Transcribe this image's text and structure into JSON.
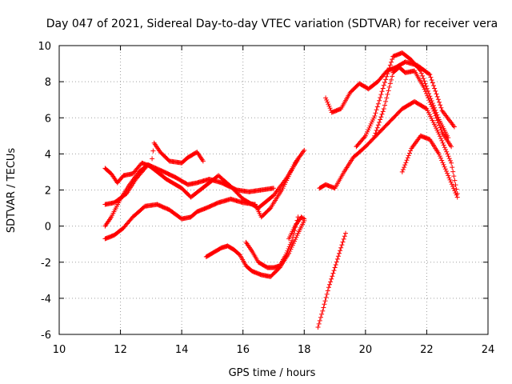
{
  "chart_data": {
    "type": "scatter",
    "title": "Day 047 of 2021, Sidereal Day-to-day VTEC variation (SDTVAR) for receiver vera",
    "xlabel": "GPS time / hours",
    "ylabel": "SDTVAR / TECUs",
    "xlim": [
      10,
      24
    ],
    "ylim": [
      -6,
      10
    ],
    "xticks": [
      10,
      12,
      14,
      16,
      18,
      20,
      22,
      24
    ],
    "yticks": [
      -6,
      -4,
      -2,
      0,
      2,
      4,
      6,
      8,
      10
    ],
    "grid": true,
    "marker": "plus",
    "color": "#ff0000",
    "series": [
      {
        "x": [
          11.5,
          11.7,
          11.9,
          12.1,
          12.4,
          12.7,
          13.0,
          13.1,
          13.3,
          13.6,
          14.0,
          14.2,
          14.5,
          14.7
        ],
        "y": [
          3.2,
          2.9,
          2.4,
          2.8,
          2.9,
          3.5,
          3.3,
          4.6,
          4.1,
          3.6,
          3.5,
          3.8,
          4.1,
          3.6
        ]
      },
      {
        "x": [
          11.5,
          11.8,
          12.2,
          12.5,
          12.9,
          13.3,
          13.8,
          14.2,
          14.5,
          14.9,
          15.3,
          15.8,
          16.2,
          16.6,
          17.0
        ],
        "y": [
          1.2,
          1.3,
          1.8,
          2.6,
          3.4,
          3.1,
          2.7,
          2.3,
          2.4,
          2.6,
          2.4,
          2.0,
          1.9,
          2.0,
          2.1
        ]
      },
      {
        "x": [
          11.5,
          11.7,
          12.0,
          12.3,
          12.6,
          12.9,
          13.2,
          13.5,
          13.8,
          14.0,
          14.3,
          14.6,
          14.9,
          15.2,
          15.6,
          16.0,
          16.5,
          17.0,
          17.4,
          17.8
        ],
        "y": [
          0.0,
          0.5,
          1.5,
          2.3,
          3.0,
          3.4,
          3.0,
          2.6,
          2.3,
          2.1,
          1.6,
          2.0,
          2.4,
          2.8,
          2.2,
          1.5,
          1.0,
          1.7,
          2.6,
          3.7
        ]
      },
      {
        "x": [
          11.5,
          11.8,
          12.1,
          12.4,
          12.8,
          13.2,
          13.6,
          14.0,
          14.3,
          14.5,
          14.8,
          15.2,
          15.6,
          16.0,
          16.4,
          16.6,
          16.9,
          17.3,
          17.7,
          18.0
        ],
        "y": [
          -0.7,
          -0.5,
          -0.1,
          0.5,
          1.1,
          1.2,
          0.9,
          0.4,
          0.5,
          0.8,
          1.0,
          1.3,
          1.5,
          1.3,
          1.2,
          0.5,
          1.0,
          2.1,
          3.5,
          4.2
        ]
      },
      {
        "x": [
          14.8,
          15.0,
          15.3,
          15.5,
          15.7,
          15.9,
          16.1,
          16.3,
          16.6,
          16.9,
          17.2,
          17.5,
          17.8,
          18.0
        ],
        "y": [
          -1.7,
          -1.5,
          -1.2,
          -1.1,
          -1.3,
          -1.6,
          -2.2,
          -2.5,
          -2.7,
          -2.8,
          -2.3,
          -1.5,
          -0.4,
          0.3
        ]
      },
      {
        "x": [
          16.1,
          16.3,
          16.5,
          16.8,
          17.0,
          17.2,
          17.4,
          17.6,
          17.8
        ],
        "y": [
          -0.9,
          -1.4,
          -2.0,
          -2.3,
          -2.3,
          -2.2,
          -1.6,
          -0.8,
          0.5
        ]
      },
      {
        "x": [
          17.5,
          17.7,
          17.9,
          18.0
        ],
        "y": [
          -0.7,
          0.0,
          0.5,
          0.4
        ]
      },
      {
        "x": [
          18.45,
          18.6,
          18.8,
          19.0,
          19.2,
          19.35
        ],
        "y": [
          -5.6,
          -4.7,
          -3.4,
          -2.3,
          -1.2,
          -0.4
        ]
      },
      {
        "x": [
          18.5,
          18.7,
          19.0,
          19.3,
          19.6,
          20.0,
          20.4,
          20.8,
          21.2,
          21.6,
          22.0,
          22.4,
          22.8,
          23.0
        ],
        "y": [
          2.1,
          2.3,
          2.1,
          3.0,
          3.8,
          4.4,
          5.1,
          5.8,
          6.5,
          6.9,
          6.5,
          5.1,
          3.5,
          1.8
        ]
      },
      {
        "x": [
          18.7,
          18.9,
          19.2,
          19.5,
          19.8,
          20.1,
          20.4,
          20.7,
          21.0,
          21.3,
          21.7,
          22.1,
          22.5,
          22.9
        ],
        "y": [
          7.1,
          6.3,
          6.5,
          7.4,
          7.9,
          7.6,
          8.0,
          8.6,
          8.8,
          9.1,
          8.9,
          8.4,
          6.4,
          5.5
        ]
      },
      {
        "x": [
          19.7,
          20.0,
          20.3,
          20.6,
          20.9,
          21.2,
          21.5,
          21.8,
          22.1,
          22.4,
          22.7
        ],
        "y": [
          4.4,
          5.0,
          6.1,
          7.8,
          9.4,
          9.6,
          9.2,
          8.6,
          7.2,
          5.9,
          4.9
        ]
      },
      {
        "x": [
          20.3,
          20.6,
          20.9,
          21.1,
          21.3,
          21.6,
          21.9,
          22.2,
          22.5,
          22.8
        ],
        "y": [
          5.0,
          6.5,
          8.5,
          8.8,
          8.5,
          8.6,
          7.7,
          6.5,
          5.2,
          4.4
        ]
      },
      {
        "x": [
          21.2,
          21.5,
          21.8,
          22.1,
          22.4,
          22.7,
          23.0
        ],
        "y": [
          3.0,
          4.3,
          5.0,
          4.8,
          4.0,
          2.8,
          1.6
        ]
      }
    ]
  }
}
